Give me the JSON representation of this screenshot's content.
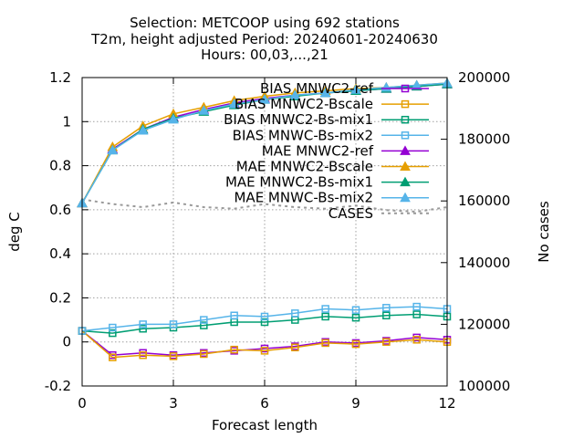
{
  "chart_data": {
    "type": "line",
    "title_lines": [
      "Selection: METCOOP using   692 stations",
      "T2m, height adjusted   Period: 20240601-20240630",
      "Hours: 00,03,...,21"
    ],
    "xlabel": "Forecast length",
    "ylabel": "deg C",
    "y2label": "No cases",
    "x": [
      0,
      1,
      2,
      3,
      4,
      5,
      6,
      7,
      8,
      9,
      10,
      11,
      12
    ],
    "xlim": [
      0,
      12
    ],
    "xticks": [
      0,
      3,
      6,
      9,
      12
    ],
    "ylim": [
      -0.2,
      1.2
    ],
    "yticks": [
      -0.2,
      0,
      0.2,
      0.4,
      0.6,
      0.8,
      1,
      1.2
    ],
    "ytick_labels": [
      "-0.2",
      "0",
      "0.2",
      "0.4",
      "0.6",
      "0.8",
      "1",
      "1.2"
    ],
    "y2lim": [
      100000,
      200000
    ],
    "y2ticks": [
      100000,
      120000,
      140000,
      160000,
      180000,
      200000
    ],
    "y2tick_labels": [
      "100000",
      "120000",
      "140000",
      "160000",
      "180000",
      "200000"
    ],
    "grid": true,
    "legend_position": "top-right",
    "series": [
      {
        "name": "BIAS MNWC2-ref",
        "color": "#9400d3",
        "marker": "square-open",
        "axis": "y1",
        "values": [
          0.05,
          -0.06,
          -0.05,
          -0.06,
          -0.05,
          -0.04,
          -0.03,
          -0.02,
          0.0,
          -0.005,
          0.005,
          0.02,
          0.01
        ]
      },
      {
        "name": "BIAS MNWC2-Bscale",
        "color": "#e69f00",
        "marker": "square-open",
        "axis": "y1",
        "values": [
          0.05,
          -0.07,
          -0.06,
          -0.065,
          -0.055,
          -0.035,
          -0.04,
          -0.025,
          -0.005,
          -0.01,
          0.0,
          0.01,
          0.0
        ]
      },
      {
        "name": "BIAS MNWC2-Bs-mix1",
        "color": "#009e73",
        "marker": "square-open",
        "axis": "y1",
        "values": [
          0.05,
          0.04,
          0.06,
          0.065,
          0.075,
          0.09,
          0.09,
          0.1,
          0.115,
          0.11,
          0.12,
          0.125,
          0.115
        ]
      },
      {
        "name": "BIAS MNWC-Bs-mix2",
        "color": "#56b4e9",
        "marker": "square-open",
        "axis": "y1",
        "values": [
          0.05,
          0.065,
          0.08,
          0.08,
          0.1,
          0.12,
          0.115,
          0.13,
          0.15,
          0.145,
          0.155,
          0.16,
          0.15
        ]
      },
      {
        "name": "MAE MNWC2-ref",
        "color": "#9400d3",
        "marker": "triangle",
        "axis": "y1",
        "values": [
          0.63,
          0.875,
          0.965,
          1.02,
          1.055,
          1.085,
          1.105,
          1.12,
          1.13,
          1.14,
          1.15,
          1.16,
          1.17
        ]
      },
      {
        "name": "MAE MNWC2-Bscale",
        "color": "#e69f00",
        "marker": "triangle",
        "axis": "y1",
        "values": [
          0.63,
          0.885,
          0.98,
          1.035,
          1.065,
          1.095,
          1.115,
          1.13,
          1.14,
          1.15,
          1.155,
          1.165,
          1.175
        ]
      },
      {
        "name": "MAE MNWC2-Bs-mix1",
        "color": "#009e73",
        "marker": "triangle",
        "axis": "y1",
        "values": [
          0.63,
          0.87,
          0.965,
          1.015,
          1.045,
          1.075,
          1.1,
          1.115,
          1.13,
          1.14,
          1.15,
          1.16,
          1.17
        ]
      },
      {
        "name": "MAE MNWC-Bs-mix2",
        "color": "#56b4e9",
        "marker": "triangle",
        "axis": "y1",
        "values": [
          0.63,
          0.87,
          0.96,
          1.01,
          1.05,
          1.08,
          1.1,
          1.12,
          1.13,
          1.145,
          1.155,
          1.165,
          1.175
        ]
      },
      {
        "name": "CASES",
        "color": "#999999",
        "marker": "none",
        "dashed": true,
        "axis": "y2",
        "values": [
          160500,
          159000,
          158000,
          159500,
          158000,
          157500,
          159000,
          158000,
          157500,
          158500,
          157000,
          156500,
          158000
        ]
      }
    ]
  }
}
